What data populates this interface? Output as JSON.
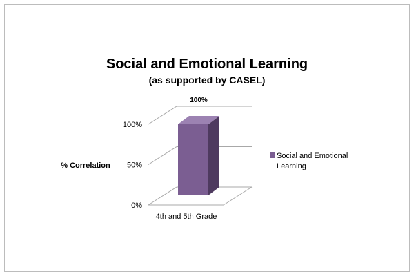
{
  "chart_data": {
    "type": "bar",
    "title": "Social and Emotional Learning",
    "subtitle": "(as supported by CASEL)",
    "categories": [
      "4th and 5th Grade"
    ],
    "series": [
      {
        "name": "Social and Emotional Learning",
        "values": [
          100
        ],
        "data_labels": [
          "100%"
        ]
      }
    ],
    "ylabel": "% Correlation",
    "yticks": [
      0,
      50,
      100
    ],
    "ytick_labels": [
      "0%",
      "50%",
      "100%"
    ],
    "ylim": [
      0,
      100
    ],
    "grid": true,
    "three_d": true,
    "legend_position": "right",
    "colors": {
      "bar_front": "#7b5e92",
      "bar_side": "#4e3a5f",
      "bar_top": "#9c82b2",
      "grid": "#a8a8a8"
    }
  }
}
